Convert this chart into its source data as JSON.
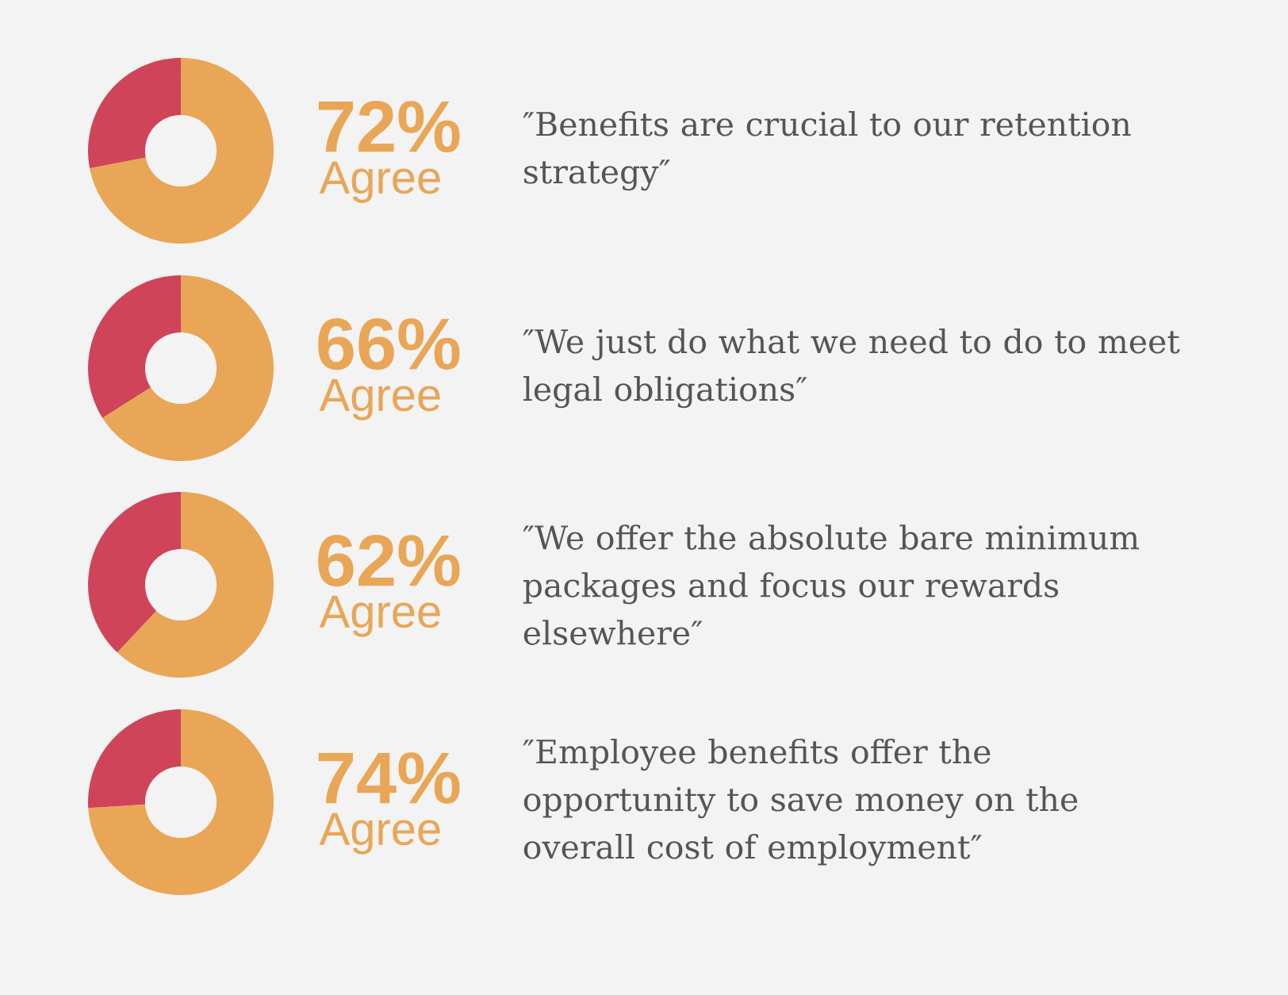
{
  "chart_data": [
    {
      "type": "donut",
      "title": "″Benefits are crucial to our retention strategy″",
      "categories": [
        "Agree",
        null
      ],
      "values": [
        72,
        28
      ],
      "colors": [
        "#e8a656",
        "#cf4459"
      ],
      "value_labels": [
        "72%",
        null
      ]
    },
    {
      "type": "donut",
      "title": "″We just do what we need to do to meet legal obligations″",
      "categories": [
        "Agree",
        null
      ],
      "values": [
        66,
        34
      ],
      "colors": [
        "#e8a656",
        "#cf4459"
      ],
      "value_labels": [
        "66%",
        null
      ]
    },
    {
      "type": "donut",
      "title": "″We offer the absolute bare minimum packages and focus our rewards elsewhere″",
      "categories": [
        "Agree",
        null
      ],
      "values": [
        62,
        38
      ],
      "colors": [
        "#e8a656",
        "#cf4459"
      ],
      "value_labels": [
        "62%",
        null
      ]
    },
    {
      "type": "donut",
      "title": "″Employee benefits offer the opportunity to save money on the overall cost of employment″",
      "categories": [
        "Agree",
        null
      ],
      "values": [
        74,
        26
      ],
      "colors": [
        "#e8a656",
        "#cf4459"
      ],
      "value_labels": [
        "74%",
        null
      ]
    }
  ]
}
